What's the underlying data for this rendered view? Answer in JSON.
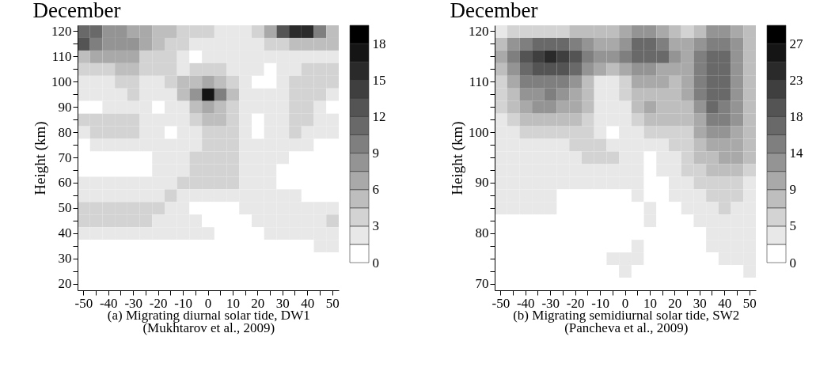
{
  "chart_data": [
    {
      "type": "heatmap",
      "title": "December",
      "ylabel": "Height  (km)",
      "categories": [
        "-50",
        null,
        "-40",
        null,
        "-30",
        null,
        "-20",
        null,
        "-10",
        null,
        "0",
        null,
        "10",
        null,
        "20",
        null,
        "30",
        null,
        "40",
        null,
        "50"
      ],
      "y_categories": [
        "120",
        null,
        "110",
        null,
        "100",
        null,
        "90",
        null,
        "80",
        null,
        "70",
        null,
        "60",
        null,
        "50",
        null,
        "40",
        null,
        "30",
        null,
        "20"
      ],
      "clim": [
        0,
        19.5
      ],
      "cticks": [
        0,
        3,
        6,
        9,
        12,
        15,
        18
      ],
      "annotations": [
        "(a) Migrating diurnal solar tide, DW1",
        "(Mukhtarov et al., 2009)"
      ],
      "cells": [
        [
          11.3,
          11.3,
          8.3,
          8.3,
          6.8,
          6.8,
          5.3,
          5.3,
          3.8,
          3.8,
          3.8,
          2.3,
          2.3,
          2.3,
          3.8,
          6.8,
          12.8,
          15.8,
          15.8,
          9.8,
          5.3
        ],
        [
          12.8,
          9.8,
          8.3,
          8.3,
          8.3,
          6.8,
          5.3,
          3.8,
          3.8,
          2.3,
          2.3,
          2.3,
          2.3,
          2.3,
          2.3,
          3.8,
          3.8,
          5.3,
          5.3,
          5.3,
          5.3
        ],
        [
          5.3,
          6.8,
          6.8,
          6.8,
          6.8,
          3.8,
          3.8,
          3.8,
          2.3,
          0.8,
          2.3,
          2.3,
          2.3,
          2.3,
          2.3,
          2.3,
          2.3,
          2.3,
          2.3,
          2.3,
          2.3
        ],
        [
          3.8,
          3.8,
          3.8,
          5.3,
          5.3,
          3.8,
          3.8,
          3.8,
          2.3,
          3.8,
          3.8,
          3.8,
          2.3,
          2.3,
          2.3,
          0.8,
          2.3,
          2.3,
          3.8,
          3.8,
          3.8
        ],
        [
          2.3,
          2.3,
          2.3,
          3.8,
          3.8,
          2.3,
          2.3,
          3.8,
          5.3,
          5.3,
          6.8,
          5.3,
          3.8,
          2.3,
          0.8,
          0.8,
          2.3,
          3.8,
          3.8,
          3.8,
          3.8
        ],
        [
          2.3,
          2.3,
          2.3,
          2.3,
          3.8,
          2.3,
          2.3,
          2.3,
          5.3,
          8.3,
          17.3,
          9.8,
          5.3,
          2.3,
          2.3,
          2.3,
          2.3,
          3.8,
          3.8,
          3.8,
          2.3
        ],
        [
          0.8,
          0.8,
          2.3,
          2.3,
          2.3,
          2.3,
          0.8,
          2.3,
          2.3,
          5.3,
          6.8,
          5.3,
          3.8,
          2.3,
          2.3,
          2.3,
          2.3,
          3.8,
          3.8,
          2.3,
          0.8
        ],
        [
          3.8,
          3.8,
          3.8,
          3.8,
          3.8,
          2.3,
          2.3,
          2.3,
          2.3,
          3.8,
          5.3,
          5.3,
          3.8,
          2.3,
          0.8,
          2.3,
          2.3,
          3.8,
          3.8,
          2.3,
          2.3
        ],
        [
          2.3,
          3.8,
          3.8,
          3.8,
          3.8,
          2.3,
          2.3,
          0.8,
          2.3,
          2.3,
          3.8,
          3.8,
          3.8,
          2.3,
          0.8,
          2.3,
          2.3,
          3.8,
          2.3,
          2.3,
          2.3
        ],
        [
          0.8,
          2.3,
          2.3,
          2.3,
          2.3,
          2.3,
          2.3,
          2.3,
          2.3,
          2.3,
          3.8,
          3.8,
          3.8,
          2.3,
          2.3,
          2.3,
          2.3,
          2.3,
          2.3,
          0.8,
          0.8
        ],
        [
          0.8,
          0.8,
          0.8,
          0.8,
          0.8,
          0.8,
          2.3,
          2.3,
          2.3,
          3.8,
          3.8,
          3.8,
          3.8,
          2.3,
          2.3,
          2.3,
          2.3,
          0.8,
          0.8,
          0.8,
          0.8
        ],
        [
          0.8,
          0.8,
          0.8,
          0.8,
          0.8,
          0.8,
          2.3,
          2.3,
          2.3,
          3.8,
          3.8,
          3.8,
          3.8,
          2.3,
          2.3,
          2.3,
          0.8,
          0.8,
          0.8,
          0.8,
          0.8
        ],
        [
          2.3,
          2.3,
          2.3,
          2.3,
          2.3,
          2.3,
          2.3,
          2.3,
          3.8,
          3.8,
          3.8,
          3.8,
          3.8,
          2.3,
          2.3,
          2.3,
          0.8,
          0.8,
          0.8,
          0.8,
          0.8
        ],
        [
          2.3,
          2.3,
          2.3,
          2.3,
          2.3,
          2.3,
          2.3,
          3.8,
          2.3,
          2.3,
          2.3,
          2.3,
          2.3,
          2.3,
          2.3,
          2.3,
          2.3,
          2.3,
          0.8,
          0.8,
          0.8
        ],
        [
          3.8,
          3.8,
          3.8,
          3.8,
          3.8,
          3.8,
          3.8,
          2.3,
          2.3,
          0.8,
          0.8,
          0.8,
          0.8,
          2.3,
          2.3,
          2.3,
          2.3,
          2.3,
          2.3,
          2.3,
          2.3
        ],
        [
          3.8,
          3.8,
          3.8,
          3.8,
          3.8,
          3.8,
          2.3,
          2.3,
          2.3,
          2.3,
          0.8,
          0.8,
          0.8,
          0.8,
          2.3,
          2.3,
          2.3,
          2.3,
          2.3,
          2.3,
          3.8
        ],
        [
          2.3,
          2.3,
          2.3,
          2.3,
          2.3,
          2.3,
          2.3,
          2.3,
          2.3,
          2.3,
          2.3,
          0.8,
          0.8,
          0.8,
          0.8,
          2.3,
          2.3,
          2.3,
          2.3,
          2.3,
          2.3
        ],
        [
          0.8,
          0.8,
          0.8,
          0.8,
          0.8,
          0.8,
          0.8,
          0.8,
          0.8,
          0.8,
          0.8,
          0.8,
          0.8,
          0.8,
          0.8,
          0.8,
          0.8,
          0.8,
          0.8,
          2.3,
          2.3
        ],
        [
          0.8,
          0.8,
          0.8,
          0.8,
          0.8,
          0.8,
          0.8,
          0.8,
          0.8,
          0.8,
          0.8,
          0.8,
          0.8,
          0.8,
          0.8,
          0.8,
          0.8,
          0.8,
          0.8,
          0.8,
          0.8
        ],
        [
          0.8,
          0.8,
          0.8,
          0.8,
          0.8,
          0.8,
          0.8,
          0.8,
          0.8,
          0.8,
          0.8,
          0.8,
          0.8,
          0.8,
          0.8,
          0.8,
          0.8,
          0.8,
          0.8,
          0.8,
          0.8
        ],
        [
          0.8,
          0.8,
          0.8,
          0.8,
          0.8,
          0.8,
          0.8,
          0.8,
          0.8,
          0.8,
          0.8,
          0.8,
          0.8,
          0.8,
          0.8,
          0.8,
          0.8,
          0.8,
          0.8,
          0.8,
          0.8
        ]
      ]
    },
    {
      "type": "heatmap",
      "title": "December",
      "ylabel": "Height  (km)",
      "categories": [
        "-50",
        null,
        "-40",
        null,
        "-30",
        null,
        "-20",
        null,
        "-10",
        null,
        "0",
        null,
        "10",
        null,
        "20",
        null,
        "30",
        null,
        "40",
        null,
        "50"
      ],
      "y_categories": [
        "120",
        null,
        null,
        null,
        "110",
        null,
        null,
        null,
        "100",
        null,
        null,
        null,
        "90",
        null,
        null,
        null,
        "80",
        null,
        null,
        null,
        "70"
      ],
      "clim": [
        0,
        29.25
      ],
      "cticks": [
        0,
        {
          "value": 4.5,
          "label": "5"
        },
        9,
        {
          "value": 13.5,
          "label": "14"
        },
        18,
        {
          "value": 22.5,
          "label": "23"
        },
        27
      ],
      "annotations": [
        "(b) Migrating semidiurnal solar tide, SW2",
        "(Pancheva et al., 2009)"
      ],
      "cells": [
        [
          3.4,
          5.6,
          5.6,
          5.6,
          5.6,
          5.6,
          7.9,
          7.9,
          7.9,
          7.9,
          10.1,
          12.4,
          12.4,
          10.1,
          7.9,
          5.6,
          7.9,
          12.4,
          12.4,
          10.1,
          7.9
        ],
        [
          7.9,
          12.4,
          14.6,
          16.9,
          16.9,
          16.9,
          14.6,
          12.4,
          10.1,
          10.1,
          12.4,
          16.9,
          16.9,
          14.6,
          10.1,
          10.1,
          12.4,
          14.6,
          14.6,
          12.4,
          7.9
        ],
        [
          10.1,
          14.6,
          19.1,
          21.4,
          23.6,
          21.4,
          19.1,
          14.6,
          12.4,
          12.4,
          14.6,
          16.9,
          16.9,
          16.9,
          12.4,
          10.1,
          14.6,
          16.9,
          16.9,
          12.4,
          7.9
        ],
        [
          7.9,
          12.4,
          16.9,
          19.1,
          19.1,
          19.1,
          16.9,
          12.4,
          10.1,
          7.9,
          10.1,
          12.4,
          12.4,
          10.1,
          10.1,
          10.1,
          14.6,
          16.9,
          16.9,
          12.4,
          7.9
        ],
        [
          5.6,
          10.1,
          14.6,
          14.6,
          14.6,
          14.6,
          12.4,
          7.9,
          3.4,
          3.4,
          5.6,
          10.1,
          10.1,
          10.1,
          7.9,
          10.1,
          14.6,
          16.9,
          16.9,
          12.4,
          7.9
        ],
        [
          5.6,
          7.9,
          12.4,
          12.4,
          14.6,
          12.4,
          10.1,
          7.9,
          3.4,
          3.4,
          5.6,
          7.9,
          7.9,
          7.9,
          7.9,
          10.1,
          14.6,
          16.9,
          16.9,
          12.4,
          7.9
        ],
        [
          5.6,
          7.9,
          10.1,
          12.4,
          12.4,
          10.1,
          10.1,
          7.9,
          3.4,
          3.4,
          3.4,
          7.9,
          10.1,
          7.9,
          7.9,
          7.9,
          12.4,
          16.9,
          14.6,
          12.4,
          7.9
        ],
        [
          3.4,
          5.6,
          7.9,
          7.9,
          7.9,
          7.9,
          7.9,
          5.6,
          3.4,
          3.4,
          3.4,
          5.6,
          7.9,
          7.9,
          7.9,
          7.9,
          10.1,
          14.6,
          14.6,
          12.4,
          7.9
        ],
        [
          3.4,
          3.4,
          5.6,
          5.6,
          5.6,
          5.6,
          5.6,
          5.6,
          3.4,
          1.1,
          3.4,
          3.4,
          5.6,
          5.6,
          5.6,
          5.6,
          10.1,
          12.4,
          12.4,
          10.1,
          7.9
        ],
        [
          3.4,
          3.4,
          3.4,
          3.4,
          3.4,
          3.4,
          5.6,
          5.6,
          5.6,
          3.4,
          3.4,
          3.4,
          3.4,
          3.4,
          5.6,
          5.6,
          7.9,
          10.1,
          10.1,
          10.1,
          7.9
        ],
        [
          3.4,
          3.4,
          3.4,
          3.4,
          3.4,
          3.4,
          3.4,
          5.6,
          5.6,
          5.6,
          3.4,
          3.4,
          1.1,
          3.4,
          3.4,
          5.6,
          7.9,
          7.9,
          10.1,
          10.1,
          7.9
        ],
        [
          3.4,
          3.4,
          3.4,
          3.4,
          3.4,
          3.4,
          3.4,
          3.4,
          3.4,
          3.4,
          3.4,
          3.4,
          1.1,
          3.4,
          3.4,
          5.6,
          5.6,
          7.9,
          7.9,
          7.9,
          5.6
        ],
        [
          3.4,
          3.4,
          3.4,
          3.4,
          3.4,
          3.4,
          3.4,
          3.4,
          3.4,
          3.4,
          3.4,
          3.4,
          1.1,
          1.1,
          3.4,
          3.4,
          5.6,
          5.6,
          5.6,
          5.6,
          3.4
        ],
        [
          3.4,
          3.4,
          3.4,
          3.4,
          3.4,
          1.1,
          1.1,
          1.1,
          1.1,
          1.1,
          1.1,
          3.4,
          1.1,
          1.1,
          3.4,
          3.4,
          3.4,
          5.6,
          5.6,
          5.6,
          3.4
        ],
        [
          3.4,
          3.4,
          3.4,
          3.4,
          3.4,
          1.1,
          1.1,
          1.1,
          1.1,
          1.1,
          1.1,
          1.1,
          3.4,
          1.1,
          1.1,
          3.4,
          3.4,
          3.4,
          5.6,
          3.4,
          3.4
        ],
        [
          1.1,
          1.1,
          1.1,
          1.1,
          1.1,
          1.1,
          1.1,
          1.1,
          1.1,
          1.1,
          1.1,
          1.1,
          3.4,
          1.1,
          1.1,
          1.1,
          3.4,
          3.4,
          3.4,
          3.4,
          3.4
        ],
        [
          1.1,
          1.1,
          1.1,
          1.1,
          1.1,
          1.1,
          1.1,
          1.1,
          1.1,
          1.1,
          1.1,
          1.1,
          1.1,
          1.1,
          1.1,
          1.1,
          1.1,
          3.4,
          3.4,
          3.4,
          3.4
        ],
        [
          1.1,
          1.1,
          1.1,
          1.1,
          1.1,
          1.1,
          1.1,
          1.1,
          1.1,
          1.1,
          1.1,
          3.4,
          1.1,
          1.1,
          1.1,
          1.1,
          1.1,
          3.4,
          3.4,
          3.4,
          3.4
        ],
        [
          1.1,
          1.1,
          1.1,
          1.1,
          1.1,
          1.1,
          1.1,
          1.1,
          1.1,
          3.4,
          3.4,
          3.4,
          1.1,
          1.1,
          1.1,
          1.1,
          1.1,
          1.1,
          3.4,
          3.4,
          3.4
        ],
        [
          1.1,
          1.1,
          1.1,
          1.1,
          1.1,
          1.1,
          1.1,
          1.1,
          1.1,
          1.1,
          3.4,
          1.1,
          1.1,
          1.1,
          1.1,
          1.1,
          1.1,
          1.1,
          1.1,
          1.1,
          3.4
        ],
        [
          1.1,
          1.1,
          1.1,
          1.1,
          1.1,
          1.1,
          1.1,
          1.1,
          1.1,
          1.1,
          1.1,
          1.1,
          1.1,
          1.1,
          1.1,
          1.1,
          1.1,
          1.1,
          1.1,
          1.1,
          1.1
        ]
      ]
    }
  ]
}
